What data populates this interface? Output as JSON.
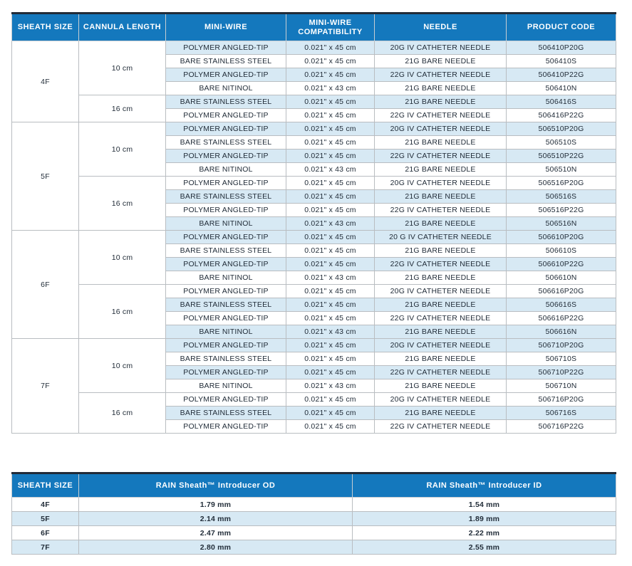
{
  "colors": {
    "header_bg": "#1478BD",
    "header_text": "#FFFFFF",
    "row_shaded_bg": "#D7E9F4",
    "row_white_bg": "#FFFFFF",
    "table_top_border": "#212B38",
    "cell_border": "#B9BDC1",
    "body_text": "#222D39"
  },
  "main_table": {
    "columns": [
      "SHEATH SIZE",
      "CANNULA LENGTH",
      "MINI-WIRE",
      "MINI-WIRE COMPATIBILITY",
      "NEEDLE",
      "PRODUCT CODE"
    ],
    "groups": [
      {
        "sheath_size": "4F",
        "subgroups": [
          {
            "cannula_length": "10 cm",
            "rows": [
              {
                "mini_wire": "POLYMER ANGLED-TIP",
                "compatibility": "0.021\" x 45 cm",
                "needle": "20G IV CATHETER NEEDLE",
                "product_code": "506410P20G",
                "shaded": true
              },
              {
                "mini_wire": "BARE STAINLESS STEEL",
                "compatibility": "0.021\" x 45 cm",
                "needle": "21G BARE NEEDLE",
                "product_code": "506410S",
                "shaded": false
              },
              {
                "mini_wire": "POLYMER ANGLED-TIP",
                "compatibility": "0.021\" x 45 cm",
                "needle": "22G IV CATHETER NEEDLE",
                "product_code": "506410P22G",
                "shaded": true
              },
              {
                "mini_wire": "BARE NITINOL",
                "compatibility": "0.021\" x 43 cm",
                "needle": "21G BARE NEEDLE",
                "product_code": "506410N",
                "shaded": false
              }
            ]
          },
          {
            "cannula_length": "16 cm",
            "rows": [
              {
                "mini_wire": "BARE STAINLESS STEEL",
                "compatibility": "0.021\" x 45 cm",
                "needle": "21G BARE NEEDLE",
                "product_code": "506416S",
                "shaded": true
              },
              {
                "mini_wire": "POLYMER ANGLED-TIP",
                "compatibility": "0.021\" x 45 cm",
                "needle": "22G IV CATHETER NEEDLE",
                "product_code": "506416P22G",
                "shaded": false
              }
            ]
          }
        ]
      },
      {
        "sheath_size": "5F",
        "subgroups": [
          {
            "cannula_length": "10 cm",
            "rows": [
              {
                "mini_wire": "POLYMER ANGLED-TIP",
                "compatibility": "0.021\" x 45 cm",
                "needle": "20G IV CATHETER NEEDLE",
                "product_code": "506510P20G",
                "shaded": true
              },
              {
                "mini_wire": "BARE STAINLESS STEEL",
                "compatibility": "0.021\" x 45 cm",
                "needle": "21G BARE NEEDLE",
                "product_code": "506510S",
                "shaded": false
              },
              {
                "mini_wire": "POLYMER ANGLED-TIP",
                "compatibility": "0.021\" x 45 cm",
                "needle": "22G IV CATHETER NEEDLE",
                "product_code": "506510P22G",
                "shaded": true
              },
              {
                "mini_wire": "BARE NITINOL",
                "compatibility": "0.021\" x 43 cm",
                "needle": "21G BARE NEEDLE",
                "product_code": "506510N",
                "shaded": false
              }
            ]
          },
          {
            "cannula_length": "16 cm",
            "rows": [
              {
                "mini_wire": "POLYMER ANGLED-TIP",
                "compatibility": "0.021\" x 45 cm",
                "needle": "20G IV CATHETER NEEDLE",
                "product_code": "506516P20G",
                "shaded": false
              },
              {
                "mini_wire": "BARE STAINLESS STEEL",
                "compatibility": "0.021\" x 45 cm",
                "needle": "21G BARE NEEDLE",
                "product_code": "506516S",
                "shaded": true
              },
              {
                "mini_wire": "POLYMER ANGLED-TIP",
                "compatibility": "0.021\" x 45 cm",
                "needle": "22G IV CATHETER NEEDLE",
                "product_code": "506516P22G",
                "shaded": false
              },
              {
                "mini_wire": "BARE NITINOL",
                "compatibility": "0.021\" x 43 cm",
                "needle": "21G BARE NEEDLE",
                "product_code": "506516N",
                "shaded": true
              }
            ]
          }
        ]
      },
      {
        "sheath_size": "6F",
        "subgroups": [
          {
            "cannula_length": "10 cm",
            "rows": [
              {
                "mini_wire": "POLYMER ANGLED-TIP",
                "compatibility": "0.021\" x 45 cm",
                "needle": "20 G IV CATHETER NEEDLE",
                "product_code": "506610P20G",
                "shaded": true
              },
              {
                "mini_wire": "BARE STAINLESS STEEL",
                "compatibility": "0.021\" x 45 cm",
                "needle": "21G BARE NEEDLE",
                "product_code": "506610S",
                "shaded": false
              },
              {
                "mini_wire": "POLYMER ANGLED-TIP",
                "compatibility": "0.021\" x 45 cm",
                "needle": "22G IV CATHETER NEEDLE",
                "product_code": "506610P22G",
                "shaded": true
              },
              {
                "mini_wire": "BARE NITINOL",
                "compatibility": "0.021\" x 43 cm",
                "needle": "21G BARE NEEDLE",
                "product_code": "506610N",
                "shaded": false
              }
            ]
          },
          {
            "cannula_length": "16 cm",
            "rows": [
              {
                "mini_wire": "POLYMER ANGLED-TIP",
                "compatibility": "0.021\" x 45 cm",
                "needle": "20G IV CATHETER NEEDLE",
                "product_code": "506616P20G",
                "shaded": false
              },
              {
                "mini_wire": "BARE STAINLESS STEEL",
                "compatibility": "0.021\" x 45 cm",
                "needle": "21G BARE NEEDLE",
                "product_code": "506616S",
                "shaded": true
              },
              {
                "mini_wire": "POLYMER ANGLED-TIP",
                "compatibility": "0.021\" x 45 cm",
                "needle": "22G IV CATHETER NEEDLE",
                "product_code": "506616P22G",
                "shaded": false
              },
              {
                "mini_wire": "BARE NITINOL",
                "compatibility": "0.021\" x 43 cm",
                "needle": "21G BARE NEEDLE",
                "product_code": "506616N",
                "shaded": true
              }
            ]
          }
        ]
      },
      {
        "sheath_size": "7F",
        "subgroups": [
          {
            "cannula_length": "10 cm",
            "rows": [
              {
                "mini_wire": "POLYMER ANGLED-TIP",
                "compatibility": "0.021\" x 45 cm",
                "needle": "20G IV CATHETER NEEDLE",
                "product_code": "506710P20G",
                "shaded": true
              },
              {
                "mini_wire": "BARE STAINLESS STEEL",
                "compatibility": "0.021\" x 45 cm",
                "needle": "21G BARE NEEDLE",
                "product_code": "506710S",
                "shaded": false
              },
              {
                "mini_wire": "POLYMER ANGLED-TIP",
                "compatibility": "0.021\" x 45 cm",
                "needle": "22G IV CATHETER NEEDLE",
                "product_code": "506710P22G",
                "shaded": true
              },
              {
                "mini_wire": "BARE NITINOL",
                "compatibility": "0.021\" x 43 cm",
                "needle": "21G BARE NEEDLE",
                "product_code": "506710N",
                "shaded": false
              }
            ]
          },
          {
            "cannula_length": "16 cm",
            "rows": [
              {
                "mini_wire": "POLYMER ANGLED-TIP",
                "compatibility": "0.021\" x 45 cm",
                "needle": "20G IV CATHETER NEEDLE",
                "product_code": "506716P20G",
                "shaded": false
              },
              {
                "mini_wire": "BARE STAINLESS STEEL",
                "compatibility": "0.021\" x 45 cm",
                "needle": "21G BARE NEEDLE",
                "product_code": "506716S",
                "shaded": true
              },
              {
                "mini_wire": "POLYMER ANGLED-TIP",
                "compatibility": "0.021\" x 45 cm",
                "needle": "22G IV CATHETER NEEDLE",
                "product_code": "506716P22G",
                "shaded": false
              }
            ]
          }
        ]
      }
    ]
  },
  "size_table": {
    "columns": [
      "SHEATH SIZE",
      "RAIN Sheath™ Introducer OD",
      "RAIN Sheath™ Introducer ID"
    ],
    "rows": [
      {
        "sheath_size": "4F",
        "od": "1.79 mm",
        "id": "1.54 mm",
        "shaded": false
      },
      {
        "sheath_size": "5F",
        "od": "2.14 mm",
        "id": "1.89 mm",
        "shaded": true
      },
      {
        "sheath_size": "6F",
        "od": "2.47 mm",
        "id": "2.22 mm",
        "shaded": false
      },
      {
        "sheath_size": "7F",
        "od": "2.80 mm",
        "id": "2.55 mm",
        "shaded": true
      }
    ]
  }
}
